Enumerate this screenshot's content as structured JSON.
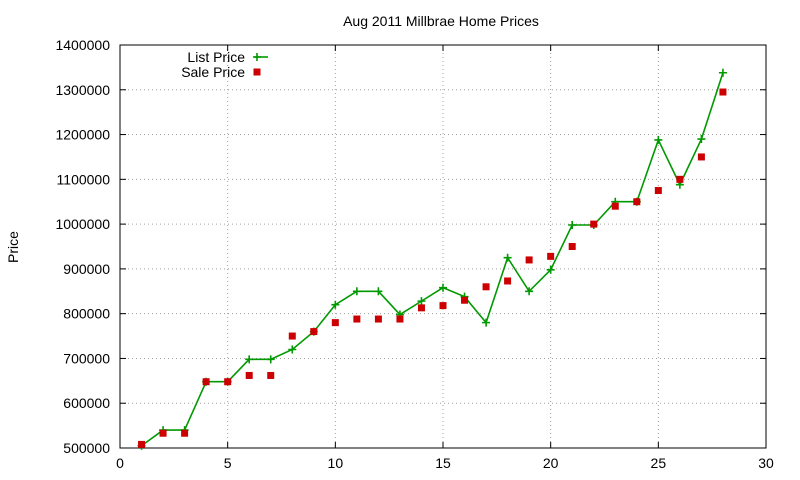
{
  "chart_data": {
    "type": "line",
    "title": "Aug 2011 Millbrae Home Prices",
    "xlabel": "",
    "ylabel": "Price",
    "xlim": [
      0,
      30
    ],
    "ylim": [
      500000,
      1400000
    ],
    "xticks": [
      0,
      5,
      10,
      15,
      20,
      25,
      30
    ],
    "yticks": [
      500000,
      600000,
      700000,
      800000,
      900000,
      1000000,
      1100000,
      1200000,
      1300000,
      1400000
    ],
    "grid": true,
    "legend_position": "top-left",
    "series": [
      {
        "name": "List Price",
        "style": "line-with-plus-markers",
        "color": "#009900",
        "x": [
          1,
          2,
          3,
          4,
          5,
          6,
          7,
          8,
          9,
          10,
          11,
          12,
          13,
          14,
          15,
          16,
          17,
          18,
          19,
          20,
          21,
          22,
          23,
          24,
          25,
          26,
          27,
          28
        ],
        "values": [
          505000,
          540000,
          540000,
          648000,
          648000,
          698000,
          698000,
          720000,
          760000,
          820000,
          850000,
          850000,
          798000,
          828000,
          858000,
          838000,
          780000,
          925000,
          850000,
          898000,
          998000,
          998000,
          1050000,
          1050000,
          1188000,
          1088000,
          1190000,
          1338000
        ]
      },
      {
        "name": "Sale Price",
        "style": "square-markers",
        "color": "#cc0000",
        "x": [
          1,
          2,
          3,
          4,
          5,
          6,
          7,
          8,
          9,
          10,
          11,
          12,
          13,
          14,
          15,
          16,
          17,
          18,
          19,
          20,
          21,
          22,
          23,
          24,
          25,
          26,
          27,
          28
        ],
        "values": [
          508000,
          533000,
          533000,
          648000,
          648000,
          662000,
          662000,
          750000,
          760000,
          780000,
          788000,
          788000,
          788000,
          813000,
          818000,
          830000,
          860000,
          873000,
          920000,
          928000,
          950000,
          1000000,
          1040000,
          1050000,
          1075000,
          1100000,
          1150000,
          1295000
        ]
      }
    ]
  }
}
